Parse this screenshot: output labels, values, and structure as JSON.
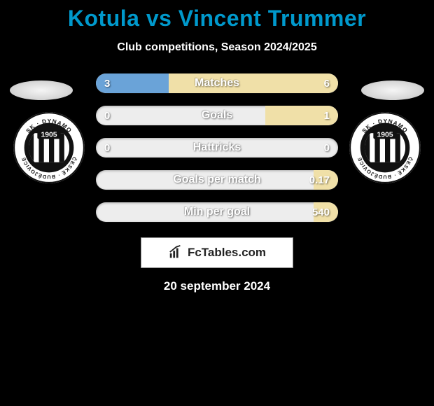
{
  "title": "Kotula vs Vincent Trummer",
  "subtitle": "Club competitions, Season 2024/2025",
  "date": "20 september 2024",
  "brand": {
    "name": "FcTables",
    "suffix": ".com"
  },
  "colors": {
    "background": "#000000",
    "title": "#0099cc",
    "bar_track": "#ededed",
    "bar_left_fill": "#6aa3d8",
    "bar_right_fill": "#f0e0a8",
    "text": "#ffffff"
  },
  "left_badge": {
    "club": "SK Dynamo České Budějovice",
    "year": "1905"
  },
  "right_badge": {
    "club": "SK Dynamo České Budějovice",
    "year": "1905"
  },
  "stats": [
    {
      "label": "Matches",
      "left_value": "3",
      "right_value": "6",
      "left_ratio": 0.3,
      "right_ratio": 0.7
    },
    {
      "label": "Goals",
      "left_value": "0",
      "right_value": "1",
      "left_ratio": 0.0,
      "right_ratio": 0.3
    },
    {
      "label": "Hattricks",
      "left_value": "0",
      "right_value": "0",
      "left_ratio": 0.0,
      "right_ratio": 0.0
    },
    {
      "label": "Goals per match",
      "left_value": "",
      "right_value": "0.17",
      "left_ratio": 0.0,
      "right_ratio": 0.1
    },
    {
      "label": "Min per goal",
      "left_value": "",
      "right_value": "540",
      "left_ratio": 0.0,
      "right_ratio": 0.1
    }
  ]
}
